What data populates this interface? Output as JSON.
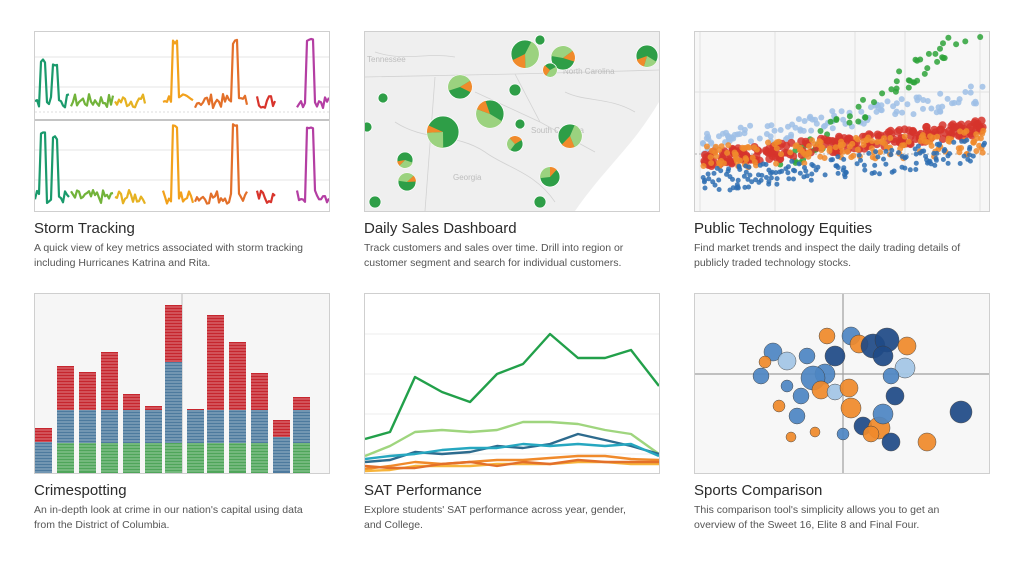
{
  "gallery": {
    "items": [
      {
        "title": "Storm Tracking",
        "desc_lines": [
          "A quick view of key metrics associated with storm tracking",
          "including Hurricanes Katrina and Rita."
        ]
      },
      {
        "title": "Daily Sales Dashboard",
        "desc_lines": [
          "Track customers and sales over time. Drill into region or",
          "customer segment and search for individual customers."
        ],
        "map_labels": [
          "Tennessee",
          "North Carolina",
          "South Carolina",
          "Georgia"
        ]
      },
      {
        "title": "Public Technology Equities",
        "desc_lines": [
          "Find market trends and inspect the daily trading details of",
          "publicly traded technology stocks."
        ]
      },
      {
        "title": "Crimespotting",
        "desc_lines": [
          "An in-depth look at crime in our nation's capital using data",
          "from the District of Columbia."
        ]
      },
      {
        "title": "SAT Performance",
        "desc_lines": [
          "Explore students' SAT performance across year, gender,",
          "and College."
        ]
      },
      {
        "title": "Sports Comparison",
        "desc_lines": [
          "This comparison tool's simplicity allows you to get an",
          "overview of the Sweet 16, Elite 8 and Final Four."
        ]
      }
    ]
  },
  "colors": {
    "storm_series": [
      "#1a9a6c",
      "#72b33a",
      "#e6b222",
      "#f2a11c",
      "#e3702a",
      "#d8342c",
      "#b43ea3"
    ],
    "sales_pies": [
      "#2e9e47",
      "#9bd27f",
      "#f08a2b"
    ],
    "equities": [
      "#9fbfe6",
      "#2ea33a",
      "#d6342c",
      "#f08a2b",
      "#2e6eb3"
    ],
    "crime": [
      "#c6262e",
      "#4d7a9e",
      "#4fa55a"
    ],
    "sat": [
      "#22a04a",
      "#9fd57e",
      "#2d6b8e",
      "#26a7c0",
      "#f08a2b",
      "#f7b43a",
      "#e3702a"
    ],
    "sports": [
      "#4d86c3",
      "#f08a2b",
      "#1f4a87",
      "#a3c6e6"
    ]
  }
}
